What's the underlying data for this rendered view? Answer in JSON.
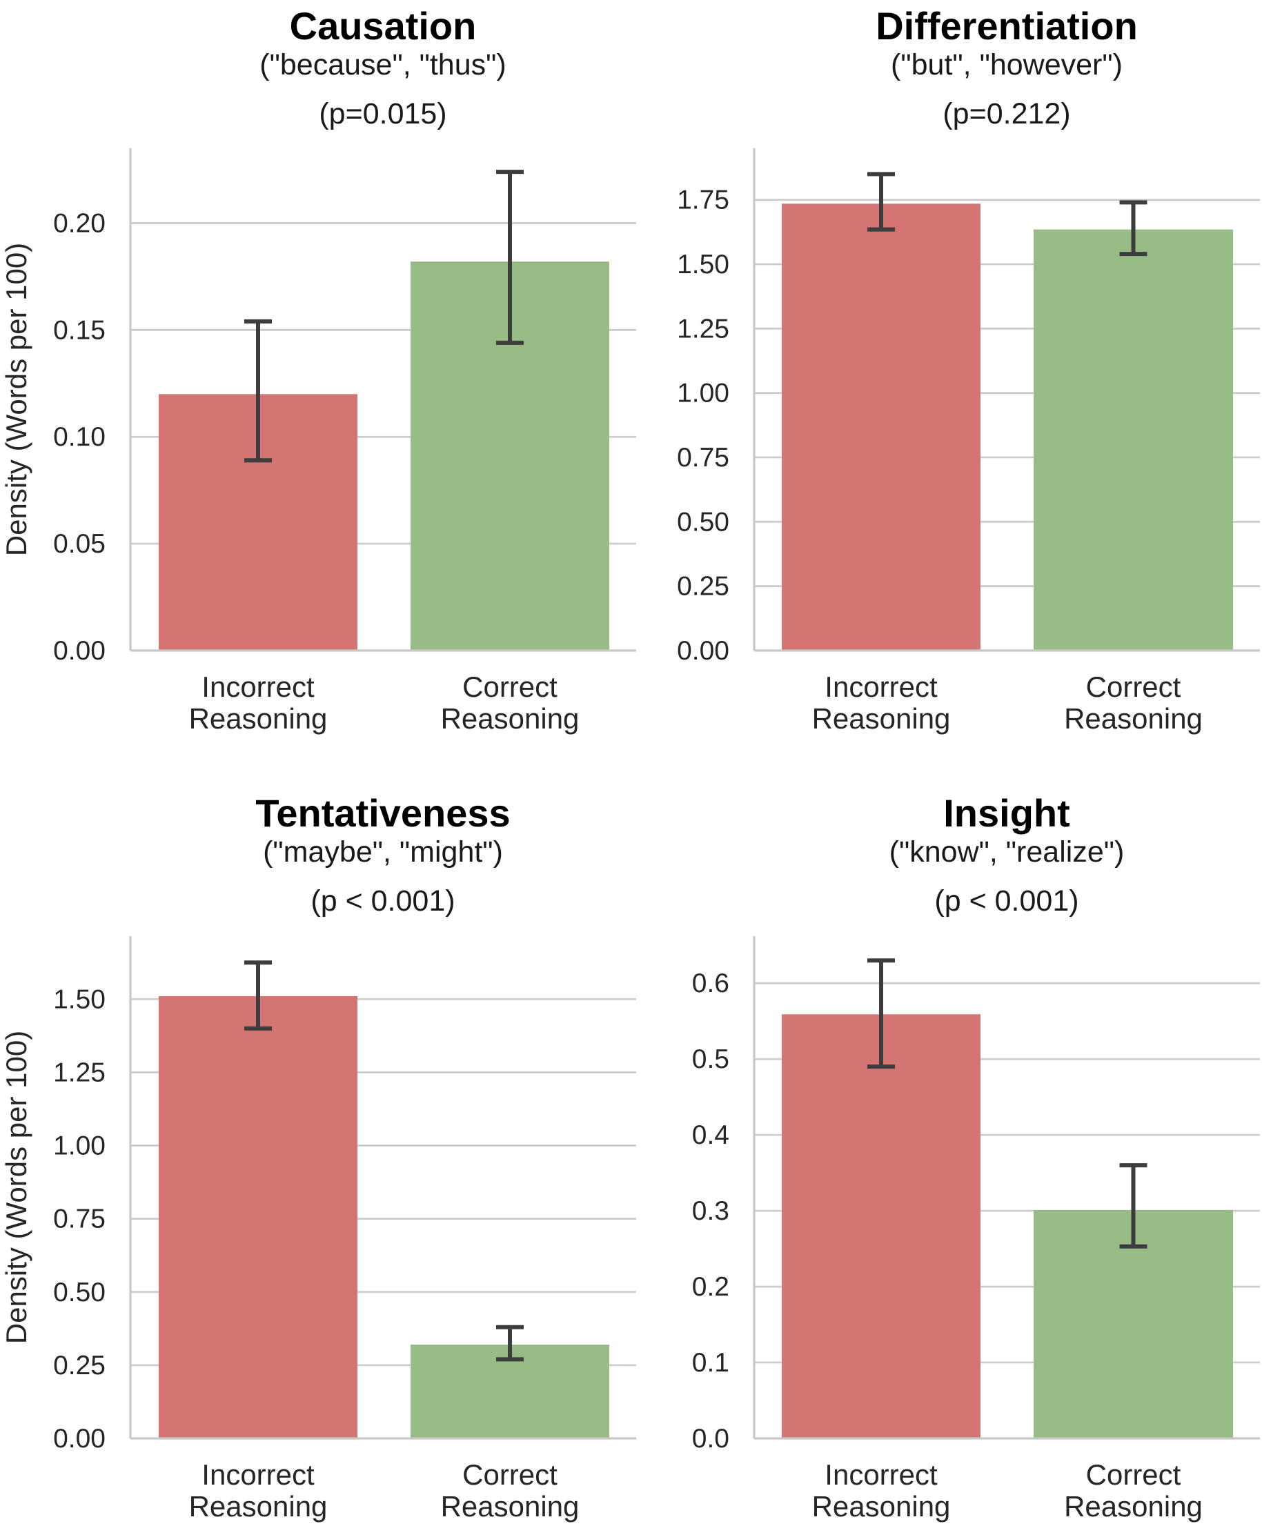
{
  "chart_data": [
    {
      "type": "bar",
      "title": "Causation",
      "subtitle": "(\"because\", \"thus\")",
      "pvalue": "(p=0.015)",
      "ylabel": "Density (Words per 100)",
      "categories": [
        "Incorrect Reasoning",
        "Correct Reasoning"
      ],
      "values": [
        0.12,
        0.182
      ],
      "error_low": [
        0.089,
        0.144
      ],
      "error_high": [
        0.154,
        0.224
      ],
      "ylim": [
        0,
        0.235
      ],
      "yticks": [
        0.0,
        0.05,
        0.1,
        0.15,
        0.2
      ],
      "ytick_labels": [
        "0.00",
        "0.05",
        "0.10",
        "0.15",
        "0.20"
      ],
      "grid": true
    },
    {
      "type": "bar",
      "title": "Differentiation",
      "subtitle": "(\"but\", \"however\")",
      "pvalue": "(p=0.212)",
      "ylabel": "",
      "categories": [
        "Incorrect Reasoning",
        "Correct Reasoning"
      ],
      "values": [
        1.735,
        1.635
      ],
      "error_low": [
        1.635,
        1.54
      ],
      "error_high": [
        1.85,
        1.74
      ],
      "ylim": [
        0,
        1.95
      ],
      "yticks": [
        0.0,
        0.25,
        0.5,
        0.75,
        1.0,
        1.25,
        1.5,
        1.75
      ],
      "ytick_labels": [
        "0.00",
        "0.25",
        "0.50",
        "0.75",
        "1.00",
        "1.25",
        "1.50",
        "1.75"
      ],
      "grid": true
    },
    {
      "type": "bar",
      "title": "Tentativeness",
      "subtitle": "(\"maybe\", \"might\")",
      "pvalue": "(p < 0.001)",
      "ylabel": "Density (Words per 100)",
      "categories": [
        "Incorrect Reasoning",
        "Correct Reasoning"
      ],
      "values": [
        1.51,
        0.32
      ],
      "error_low": [
        1.4,
        0.27
      ],
      "error_high": [
        1.625,
        0.38
      ],
      "ylim": [
        0,
        1.715
      ],
      "yticks": [
        0.0,
        0.25,
        0.5,
        0.75,
        1.0,
        1.25,
        1.5
      ],
      "ytick_labels": [
        "0.00",
        "0.25",
        "0.50",
        "0.75",
        "1.00",
        "1.25",
        "1.50"
      ],
      "grid": true
    },
    {
      "type": "bar",
      "title": "Insight",
      "subtitle": "(\"know\", \"realize\")",
      "pvalue": "(p < 0.001)",
      "ylabel": "",
      "categories": [
        "Incorrect Reasoning",
        "Correct Reasoning"
      ],
      "values": [
        0.559,
        0.301
      ],
      "error_low": [
        0.49,
        0.253
      ],
      "error_high": [
        0.63,
        0.36
      ],
      "ylim": [
        0,
        0.662
      ],
      "yticks": [
        0.0,
        0.1,
        0.2,
        0.3,
        0.4,
        0.5,
        0.6
      ],
      "ytick_labels": [
        "0.0",
        "0.1",
        "0.2",
        "0.3",
        "0.4",
        "0.5",
        "0.6"
      ],
      "grid": true
    }
  ],
  "colors": {
    "incorrect_bar": "#d47573",
    "correct_bar": "#97bc86",
    "error_bar": "#3d3d3d"
  }
}
